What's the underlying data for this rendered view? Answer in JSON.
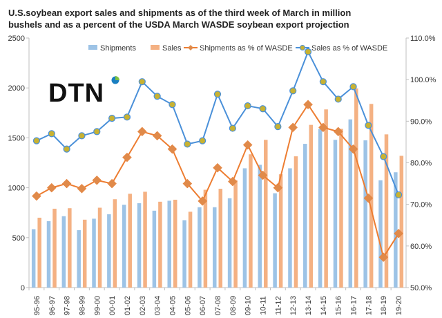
{
  "chart_data": {
    "type": "bar",
    "title_lines": [
      "U.S.soybean export sales and shipments as of the third week of March in million",
      "bushels and as a percent of the USDA March WASDE  soybean  export projection"
    ],
    "categories": [
      "95-96",
      "96-97",
      "97-98",
      "98-99",
      "99-00",
      "00-01",
      "01-02",
      "02-03",
      "03-04",
      "04-05",
      "05-06",
      "06-07",
      "07-08",
      "08-09",
      "09-10",
      "10-11",
      "11-12",
      "12-13",
      "13-14",
      "14-15",
      "15-16",
      "16-17",
      "17-18",
      "18-19",
      "19-20"
    ],
    "series": [
      {
        "name": "Shipments",
        "kind": "bar",
        "axis": "left",
        "color": "#9dc3e6",
        "values": [
          585,
          665,
          715,
          575,
          690,
          735,
          830,
          845,
          770,
          870,
          675,
          805,
          805,
          895,
          1195,
          1230,
          945,
          1195,
          1440,
          1590,
          1480,
          1685,
          1475,
          1075,
          1155
        ]
      },
      {
        "name": "Sales",
        "kind": "bar",
        "axis": "left",
        "color": "#f4b183",
        "values": [
          700,
          790,
          795,
          680,
          800,
          885,
          940,
          960,
          860,
          880,
          760,
          980,
          990,
          1075,
          1335,
          1480,
          1135,
          1315,
          1630,
          1785,
          1590,
          1995,
          1840,
          1535,
          1320
        ]
      },
      {
        "name": "Shipments as % of WASDE",
        "kind": "line",
        "axis": "right",
        "color": "#ed7d31",
        "marker": "diamond",
        "marker_color": "#e08a4a",
        "values": [
          72.0,
          74.0,
          75.0,
          73.8,
          75.8,
          75.0,
          81.3,
          87.5,
          86.5,
          83.3,
          75.0,
          70.8,
          78.8,
          75.5,
          84.3,
          77.0,
          74.0,
          88.5,
          94.0,
          88.5,
          87.5,
          83.3,
          71.5,
          57.3,
          63.0
        ]
      },
      {
        "name": "Sales as % of WASDE",
        "kind": "line",
        "axis": "right",
        "color": "#4a90d9",
        "marker": "circle",
        "marker_color": "#c8b232",
        "values": [
          85.3,
          87.0,
          83.3,
          86.5,
          87.5,
          90.7,
          91.0,
          99.5,
          96.0,
          94.0,
          84.5,
          85.3,
          96.5,
          88.3,
          93.7,
          93.0,
          88.7,
          97.3,
          106.7,
          99.5,
          95.3,
          98.3,
          89.0,
          81.5,
          72.3
        ]
      }
    ],
    "y_left": {
      "min": 0,
      "max": 2500,
      "ticks": [
        "0",
        "500",
        "1000",
        "1500",
        "2000",
        "2500"
      ]
    },
    "y_right": {
      "min": 50,
      "max": 110,
      "ticks": [
        "50.0%",
        "60.0%",
        "70.0%",
        "80.0%",
        "90.0%",
        "100.0%",
        "110.0%"
      ]
    },
    "grid": false,
    "legend_position": "top"
  },
  "logo": {
    "text": "DTN",
    "dot_colors": [
      "#1a7fc1",
      "#7dc142"
    ]
  },
  "colors": {
    "axis": "#bfbfbf",
    "text": "#333333"
  }
}
